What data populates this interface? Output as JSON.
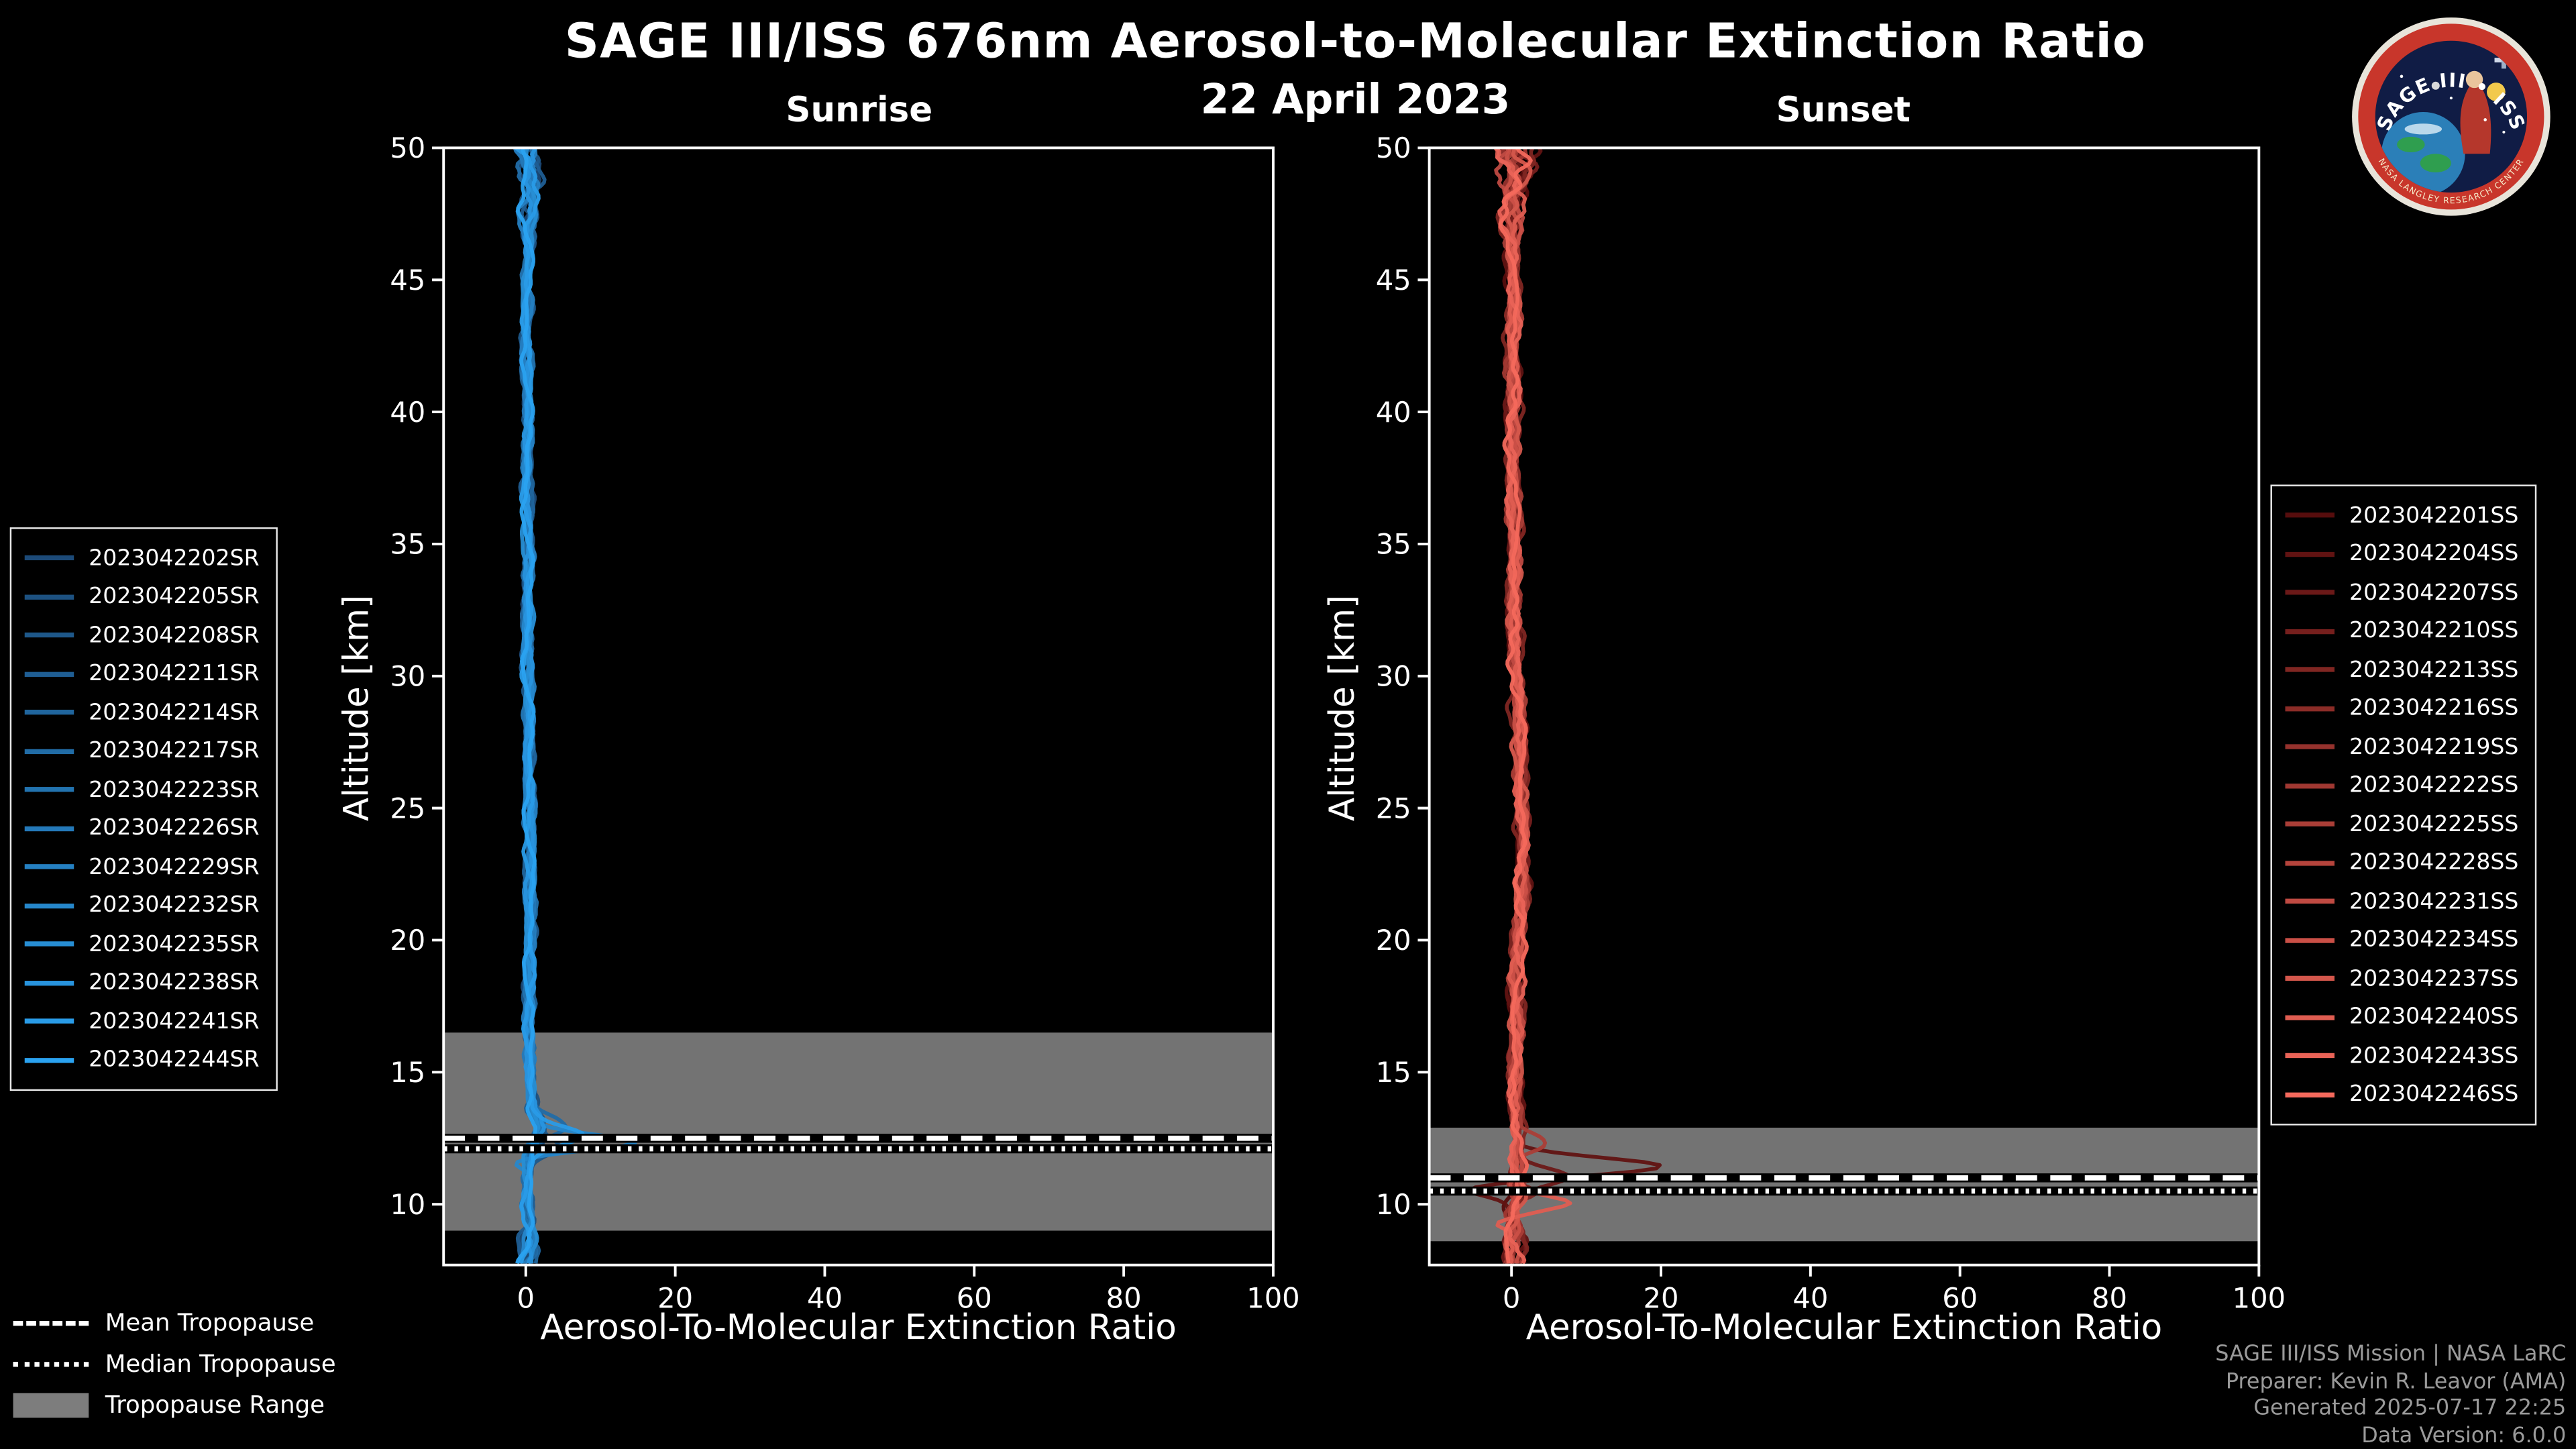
{
  "title": "SAGE III/ISS 676nm Aerosol-to-Molecular Extinction Ratio",
  "date": "22 April 2023",
  "logo": {
    "title": "SAGE III • ISS",
    "arc_text": "NASA LANGLEY RESEARCH CENTER"
  },
  "tropopause_legend": [
    {
      "label": "Mean Tropopause",
      "style": "dashed"
    },
    {
      "label": "Median Tropopause",
      "style": "dotted"
    },
    {
      "label": "Tropopause Range",
      "style": "patch"
    }
  ],
  "credits": [
    "SAGE III/ISS Mission | NASA LaRC",
    "Preparer: Kevin R. Leavor (AMA)",
    "Generated 2025-07-17 22:25",
    "Data Version: 6.0.0"
  ],
  "chart_data": [
    {
      "type": "line",
      "title": "Sunrise",
      "xlabel": "Aerosol-To-Molecular Extinction Ratio",
      "ylabel": "Altitude [km]",
      "xlim": [
        -11,
        100
      ],
      "ylim": [
        7.7,
        50
      ],
      "xticks": [
        0,
        20,
        40,
        60,
        80,
        100
      ],
      "yticks": [
        10,
        15,
        20,
        25,
        30,
        35,
        40,
        45,
        50
      ],
      "grid": false,
      "legend_position": "outside-left",
      "line_color_ramp": [
        "#1c4a78",
        "#2aa2f0"
      ],
      "series": [
        "2023042202SR",
        "2023042205SR",
        "2023042208SR",
        "2023042211SR",
        "2023042214SR",
        "2023042217SR",
        "2023042223SR",
        "2023042226SR",
        "2023042229SR",
        "2023042232SR",
        "2023042235SR",
        "2023042238SR",
        "2023042241SR",
        "2023042244SR"
      ],
      "base_profile": {
        "altitudes": [
          50,
          45,
          40,
          35,
          30,
          25,
          20,
          17,
          15,
          13.6,
          12.9,
          12.4,
          11.8,
          11,
          10,
          9,
          7.7
        ],
        "values": [
          0.3,
          0.2,
          0.2,
          0.25,
          0.3,
          0.5,
          0.6,
          0.4,
          0.5,
          0.9,
          2.0,
          1.4,
          0.5,
          0.3,
          0.2,
          0.3,
          0.2
        ]
      },
      "noise_amplitude": 0.5,
      "features": [
        {
          "series": 9,
          "altitude": 12.35,
          "peak": 13.5,
          "width": 0.4
        },
        {
          "series": 9,
          "altitude": 11.55,
          "peak": -2.5,
          "width": 0.3
        },
        {
          "series": 12,
          "altitude": 12.6,
          "peak": 5.5,
          "width": 0.45
        },
        {
          "series": 5,
          "altitude": 13.0,
          "peak": 3.5,
          "width": 0.5
        },
        {
          "series": 2,
          "altitude": 12.1,
          "peak": 3.0,
          "width": 0.4
        }
      ],
      "tropopause": {
        "mean_km": 12.5,
        "median_km": 12.1,
        "range_km": [
          9.0,
          16.5
        ]
      }
    },
    {
      "type": "line",
      "title": "Sunset",
      "xlabel": "Aerosol-To-Molecular Extinction Ratio",
      "ylabel": "Altitude [km]",
      "xlim": [
        -11,
        100
      ],
      "ylim": [
        7.7,
        50
      ],
      "xticks": [
        0,
        20,
        40,
        60,
        80,
        100
      ],
      "yticks": [
        10,
        15,
        20,
        25,
        30,
        35,
        40,
        45,
        50
      ],
      "grid": false,
      "legend_position": "outside-right",
      "line_color_ramp": [
        "#560d0d",
        "#f4695c"
      ],
      "series": [
        "2023042201SS",
        "2023042204SS",
        "2023042207SS",
        "2023042210SS",
        "2023042213SS",
        "2023042216SS",
        "2023042219SS",
        "2023042222SS",
        "2023042225SS",
        "2023042228SS",
        "2023042231SS",
        "2023042234SS",
        "2023042237SS",
        "2023042240SS",
        "2023042243SS",
        "2023042246SS"
      ],
      "base_profile": {
        "altitudes": [
          50,
          45,
          40,
          35,
          30,
          27,
          24,
          21,
          18,
          15,
          13,
          12,
          11,
          10,
          9,
          7.7
        ],
        "values": [
          0.3,
          0.2,
          0.2,
          0.3,
          0.6,
          1.1,
          1.7,
          1.1,
          0.6,
          0.5,
          0.6,
          0.9,
          0.8,
          0.5,
          0.3,
          0.2
        ]
      },
      "noise_amplitude": 0.7,
      "features": [
        {
          "series": 1,
          "altitude": 11.45,
          "peak": 19.5,
          "width": 0.45
        },
        {
          "series": 1,
          "altitude": 10.55,
          "peak": -5.5,
          "width": 0.35
        },
        {
          "series": 2,
          "altitude": 11.05,
          "peak": 6.0,
          "width": 0.4
        },
        {
          "series": 13,
          "altitude": 10.05,
          "peak": 6.5,
          "width": 0.35
        },
        {
          "series": 13,
          "altitude": 9.3,
          "peak": -3.0,
          "width": 0.3
        },
        {
          "series": 8,
          "altitude": 12.3,
          "peak": 4.0,
          "width": 0.5
        },
        {
          "series": 4,
          "altitude": 10.4,
          "peak": 4.0,
          "width": 0.35
        }
      ],
      "tropopause": {
        "mean_km": 11.0,
        "median_km": 10.5,
        "range_km": [
          8.6,
          12.9
        ]
      }
    }
  ]
}
